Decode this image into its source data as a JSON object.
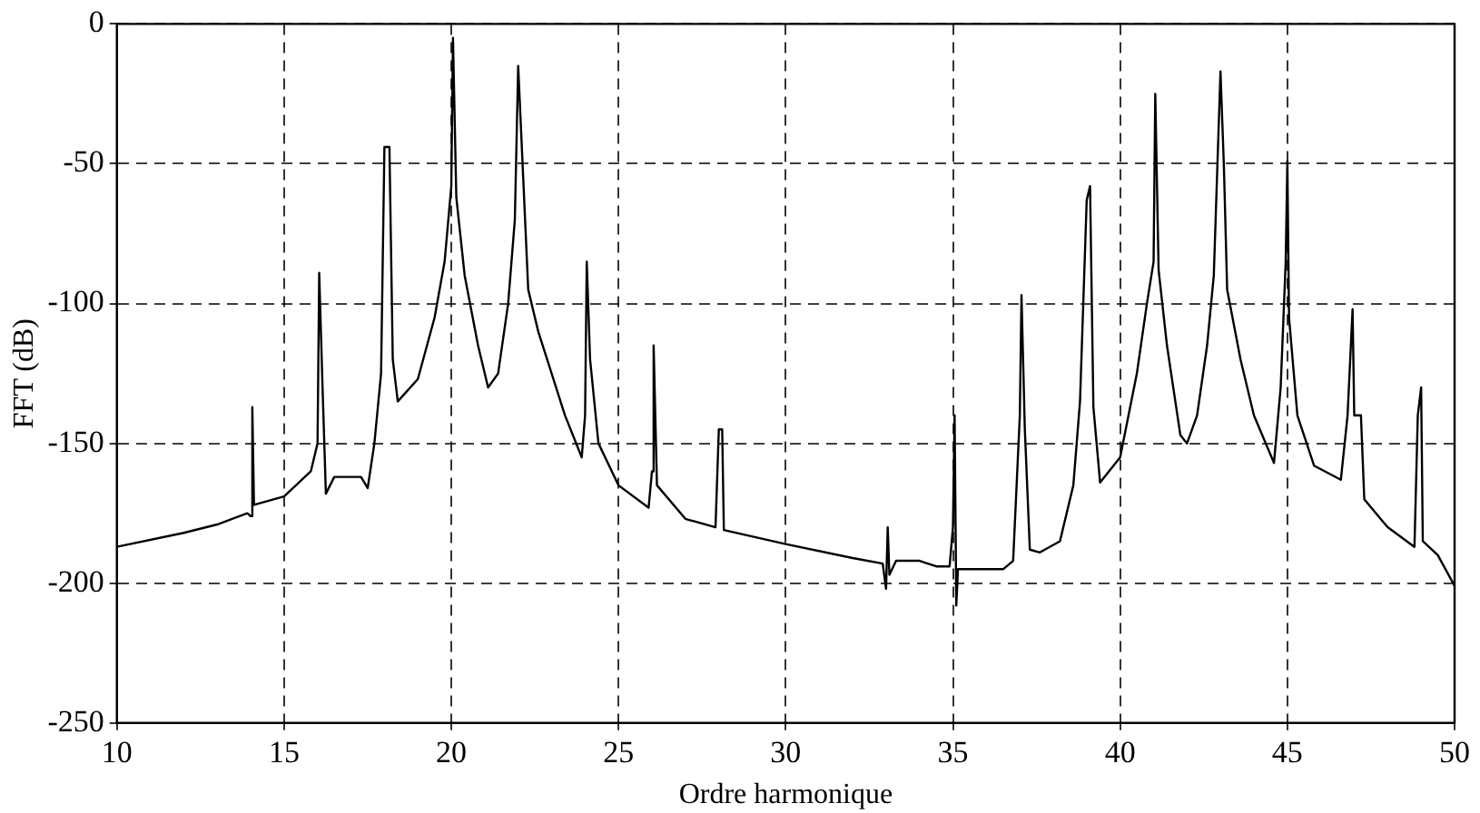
{
  "chart_data": {
    "type": "line",
    "xlabel": "Ordre harmonique",
    "ylabel": "FFT (dB)",
    "xlim": [
      10,
      50
    ],
    "xticks": [
      10,
      15,
      20,
      25,
      30,
      35,
      40,
      45,
      50
    ],
    "ylim": [
      -250,
      0
    ],
    "yticks": [
      -250,
      -200,
      -150,
      -100,
      -50,
      0
    ],
    "grid": true,
    "legend": false,
    "marker": "none",
    "line_style": "solid",
    "series": [
      {
        "color": "#000000",
        "x": [
          10,
          12,
          13,
          13.9,
          14,
          14.05,
          14.1,
          15,
          15.8,
          16,
          16.05,
          16.15,
          16.25,
          16.5,
          17.3,
          17.5,
          17.7,
          17.9,
          18,
          18.15,
          18.25,
          18.4,
          19,
          19.5,
          19.8,
          20,
          20.05,
          20.15,
          20.4,
          20.8,
          21.1,
          21.4,
          21.7,
          21.9,
          22,
          22.15,
          22.3,
          22.6,
          23,
          23.4,
          23.8,
          23.9,
          24,
          24.05,
          24.15,
          24.4,
          25,
          25.9,
          26,
          26.05,
          26.15,
          27,
          27.9,
          28,
          28.1,
          28.15,
          30,
          32,
          32.9,
          33,
          33.05,
          33.1,
          33.3,
          34,
          34.5,
          34.9,
          35,
          35.05,
          35.1,
          35.15,
          36.5,
          36.8,
          37,
          37.05,
          37.15,
          37.3,
          37.6,
          38.2,
          38.6,
          38.8,
          39,
          39.1,
          39.2,
          39.4,
          40,
          40.5,
          40.8,
          41,
          41.05,
          41.15,
          41.4,
          41.8,
          42,
          42.3,
          42.6,
          42.8,
          43,
          43.1,
          43.2,
          43.6,
          44,
          44.6,
          44.8,
          44.95,
          45,
          45.05,
          45.3,
          45.8,
          46.6,
          46.8,
          46.95,
          47,
          47.2,
          47.3,
          48,
          48.8,
          48.9,
          49,
          49.05,
          49.5,
          50
        ],
        "values": [
          -187,
          -182,
          -179,
          -175,
          -176,
          -137,
          -172,
          -169,
          -160,
          -150,
          -89,
          -130,
          -168,
          -162,
          -162,
          -166,
          -150,
          -125,
          -44,
          -44,
          -120,
          -135,
          -127,
          -105,
          -85,
          -58,
          -5,
          -62,
          -90,
          -115,
          -130,
          -125,
          -100,
          -70,
          -15,
          -55,
          -95,
          -110,
          -125,
          -140,
          -152,
          -155,
          -140,
          -85,
          -120,
          -150,
          -165,
          -173,
          -160,
          -115,
          -165,
          -177,
          -180,
          -145,
          -145,
          -181,
          -186,
          -191,
          -193,
          -202,
          -180,
          -197,
          -192,
          -192,
          -194,
          -194,
          -180,
          -140,
          -208,
          -195,
          -195,
          -192,
          -140,
          -97,
          -145,
          -188,
          -189,
          -185,
          -165,
          -135,
          -63,
          -58,
          -137,
          -164,
          -155,
          -125,
          -100,
          -85,
          -25,
          -88,
          -115,
          -147,
          -150,
          -140,
          -115,
          -90,
          -17,
          -50,
          -95,
          -120,
          -140,
          -157,
          -130,
          -85,
          -49,
          -105,
          -140,
          -158,
          -163,
          -140,
          -102,
          -140,
          -140,
          -170,
          -180,
          -187,
          -140,
          -130,
          -185,
          -190,
          -201
        ]
      }
    ]
  }
}
